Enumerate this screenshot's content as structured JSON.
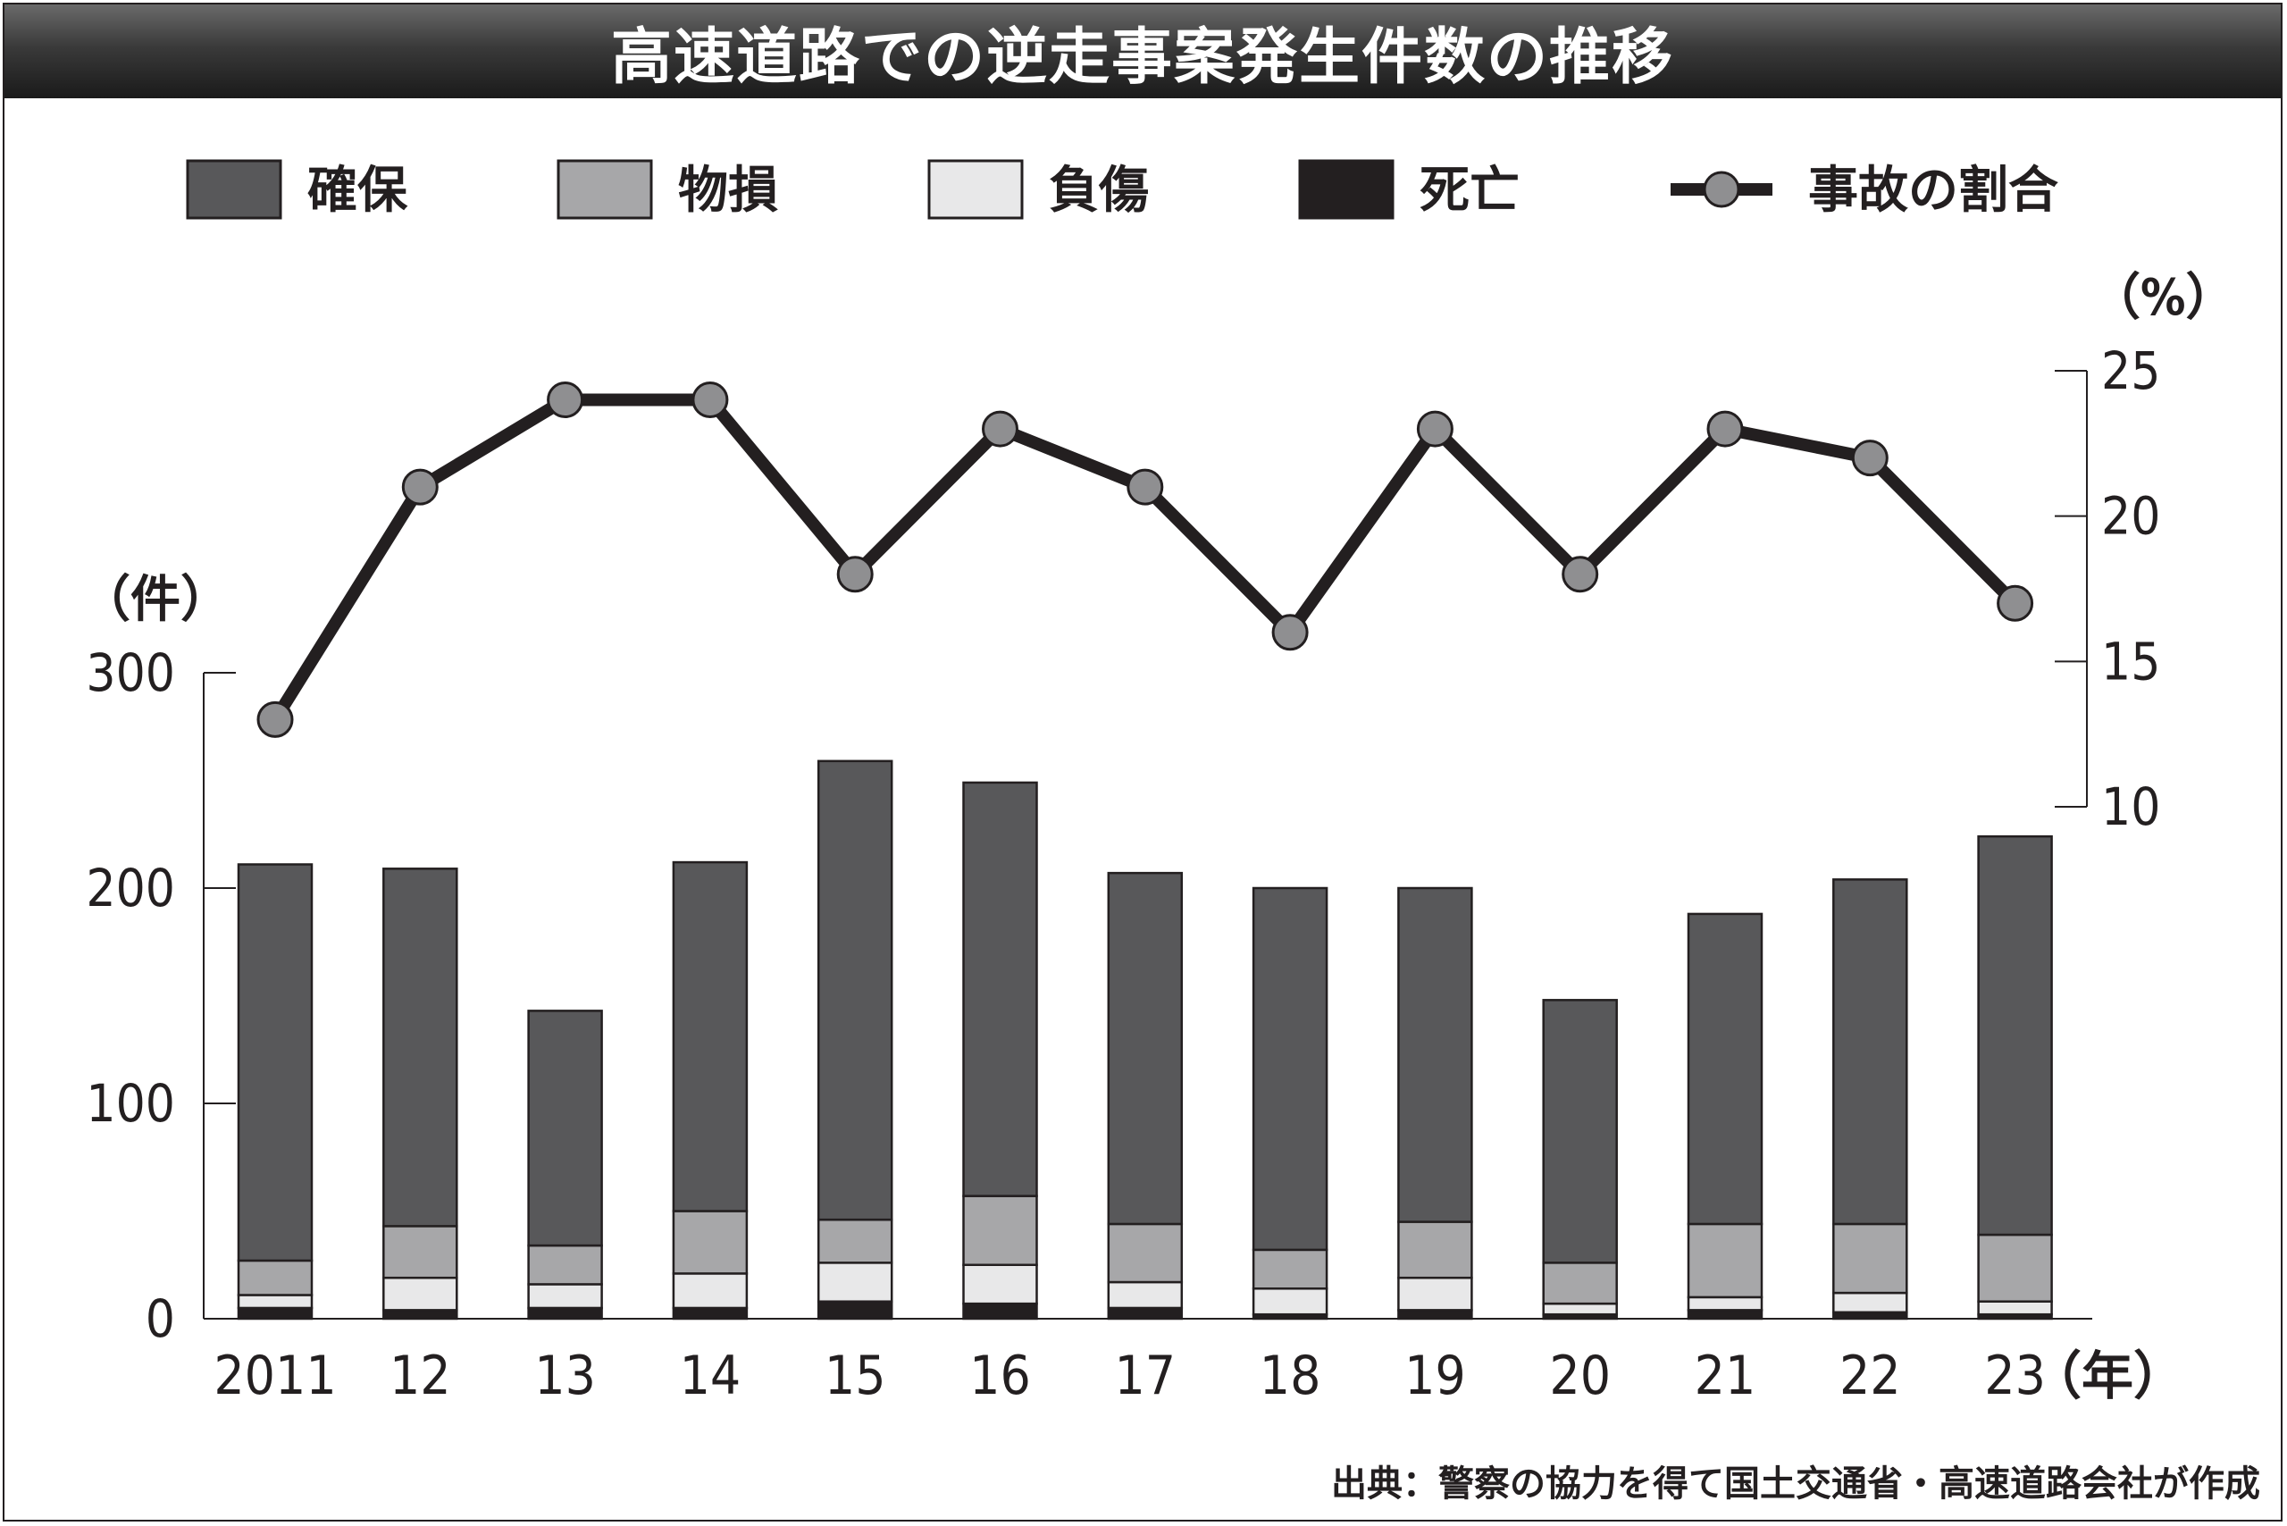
{
  "title": "高速道路での逆走事案発生件数の推移",
  "source": "出典：警察の協力を得て国土交通省・高速道路会社が作成",
  "colors": {
    "確保": "#58585a",
    "物損": "#a7a7a9",
    "負傷": "#e8e8e9",
    "死亡": "#231f20",
    "line": "#231f20",
    "marker": "#8f8f91"
  },
  "chart_data": {
    "type": "bar",
    "stacked": true,
    "categories": [
      "2011",
      "12",
      "13",
      "14",
      "15",
      "16",
      "17",
      "18",
      "19",
      "20",
      "21",
      "22",
      "23"
    ],
    "x_unit": "（年）",
    "y_left": {
      "unit": "（件）",
      "ylim": [
        0,
        300
      ],
      "ticks": [
        "0",
        "100",
        "200",
        "300"
      ]
    },
    "y_right": {
      "unit": "（%）",
      "ylim": [
        10,
        25
      ],
      "ticks": [
        "10",
        "15",
        "20",
        "25"
      ]
    },
    "series": [
      {
        "name": "死亡",
        "values": [
          5,
          4,
          5,
          5,
          8,
          7,
          5,
          2,
          4,
          2,
          4,
          3,
          2
        ]
      },
      {
        "name": "負傷",
        "values": [
          6,
          15,
          11,
          16,
          18,
          18,
          12,
          12,
          15,
          5,
          6,
          9,
          6
        ]
      },
      {
        "name": "物損",
        "values": [
          16,
          24,
          18,
          29,
          20,
          32,
          27,
          18,
          26,
          19,
          34,
          32,
          31
        ]
      },
      {
        "name": "確保",
        "values": [
          184,
          166,
          109,
          162,
          213,
          192,
          163,
          168,
          155,
          122,
          144,
          160,
          185
        ]
      }
    ],
    "line_series": {
      "name": "事故の割合",
      "axis": "right",
      "values": [
        13,
        21,
        24,
        24,
        18,
        23,
        21,
        16,
        23,
        18,
        23,
        22,
        17
      ]
    },
    "legend": [
      "確保",
      "物損",
      "負傷",
      "死亡",
      "事故の割合"
    ],
    "legend_placement": "top"
  }
}
